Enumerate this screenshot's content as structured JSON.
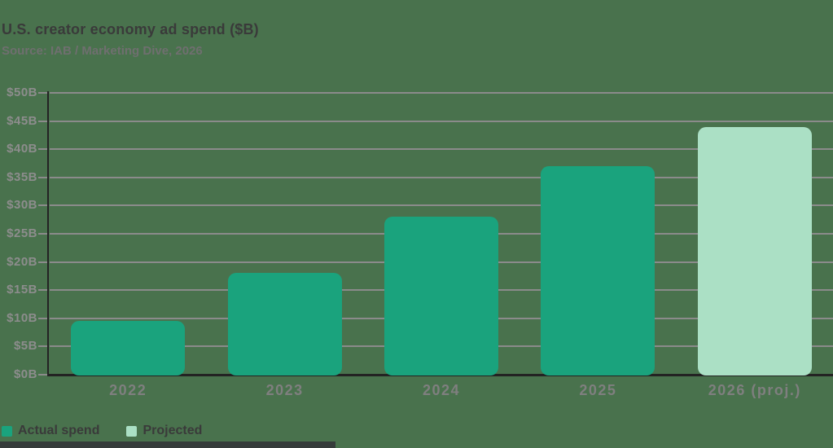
{
  "header": {
    "title": "U.S. creator economy ad spend ($B)",
    "subtitle": "Source: IAB / Marketing Dive, 2026"
  },
  "page": {
    "background_color": "#49724d",
    "bottom_bar_color": "#353b3a"
  },
  "chart_data": {
    "type": "bar",
    "title": "U.S. creator economy ad spend ($B)",
    "subtitle": "Source: IAB / Marketing Dive, 2026",
    "categories": [
      "2022",
      "2023",
      "2024",
      "2025",
      "2026 (proj.)"
    ],
    "values": [
      9.5,
      18,
      28,
      37,
      44
    ],
    "bar_kinds": [
      "actual",
      "actual",
      "actual",
      "actual",
      "projected"
    ],
    "series": [
      {
        "name": "Actual spend",
        "values": [
          9.5,
          18,
          28,
          37,
          null
        ]
      },
      {
        "name": "Projected",
        "values": [
          null,
          null,
          null,
          null,
          44
        ]
      }
    ],
    "xlabel": "",
    "ylabel": "",
    "ylim": [
      0,
      50
    ],
    "ytick_step": 5,
    "ytick_labels": [
      "$0B",
      "$5B",
      "$10B",
      "$15B",
      "$20B",
      "$25B",
      "$30B",
      "$35B",
      "$40B",
      "$45B",
      "$50B"
    ],
    "grid": true,
    "legend_position": "bottom-left",
    "legend": [
      {
        "label": "Actual spend",
        "kind": "actual"
      },
      {
        "label": "Projected",
        "kind": "projected"
      }
    ],
    "colors": {
      "actual": "#1aa37d",
      "projected": "#abe0c5",
      "background": "#49724d",
      "gridline": "#8b8b8b",
      "axis_line": "#232323",
      "tick_label": "#8d8d8d",
      "x_label": "#7f7f7f",
      "title_text": "#3a3a3a",
      "subtitle_text": "#6f6f6f",
      "legend_text": "#3a3a3a",
      "bottom_bar": "#353b3a"
    }
  }
}
